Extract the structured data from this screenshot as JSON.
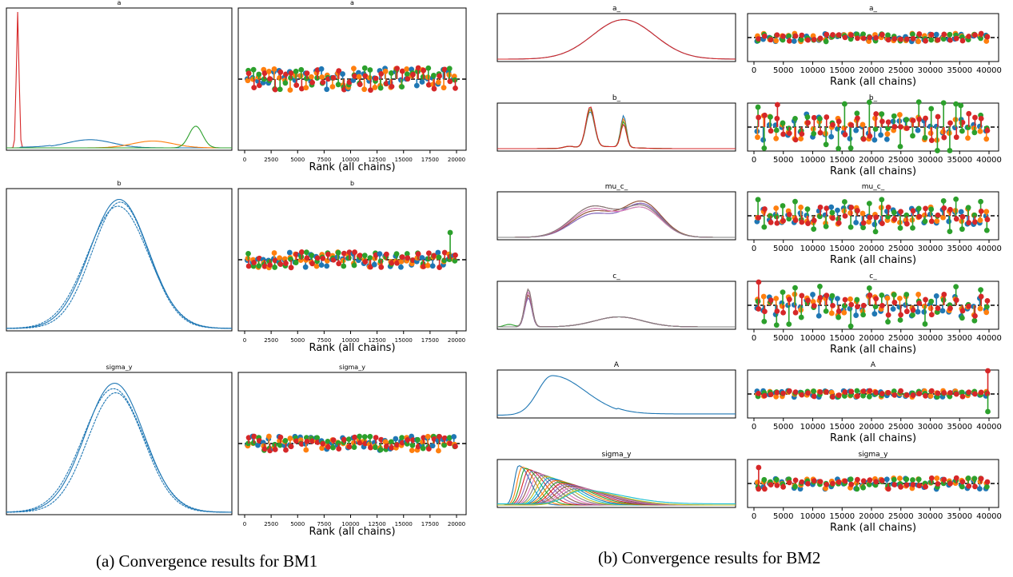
{
  "captions": {
    "a": "(a) Convergence results for BM1",
    "b": "(b) Convergence results for BM2"
  },
  "colors": {
    "chain_0": "#1f77b4",
    "chain_1": "#ff7f0e",
    "chain_2": "#2ca02c",
    "chain_3": "#d62728",
    "chain_4": "#9467bd",
    "chain_5": "#8c564b",
    "chain_6": "#e377c2",
    "chain_7": "#7f7f7f",
    "chain_8": "#bcbd22",
    "chain_9": "#17becf"
  },
  "chart_data": [
    {
      "figure": "BM1",
      "type": "line",
      "panel": "posterior",
      "title": "a",
      "series": [
        {
          "color": "#d62728",
          "center": 0.05,
          "width": 0.006,
          "height": 1.0
        },
        {
          "color": "#1f77b4",
          "center": 0.37,
          "width": 0.1,
          "height": 0.06
        },
        {
          "color": "#ff7f0e",
          "center": 0.65,
          "width": 0.09,
          "height": 0.05
        },
        {
          "color": "#2ca02c",
          "center": 0.84,
          "width": 0.03,
          "height": 0.16
        }
      ]
    },
    {
      "figure": "BM1",
      "type": "scatter",
      "panel": "rank",
      "title": "a",
      "xlabel": "Rank (all chains)",
      "xlim": [
        0,
        20000
      ],
      "xticks": [
        0,
        2500,
        5000,
        7500,
        10000,
        12500,
        15000,
        17500,
        20000
      ],
      "chains": 4
    },
    {
      "figure": "BM1",
      "type": "line",
      "panel": "posterior",
      "title": "b",
      "series": [
        {
          "color": "#1f77b4",
          "center": 0.5,
          "width": 0.13,
          "height": 0.95
        },
        {
          "color": "#1f77b4",
          "center": 0.495,
          "width": 0.135,
          "height": 0.9
        },
        {
          "color": "#1f77b4",
          "center": 0.505,
          "width": 0.125,
          "height": 0.93
        }
      ]
    },
    {
      "figure": "BM1",
      "type": "scatter",
      "panel": "rank",
      "title": "b",
      "xlabel": "Rank (all chains)",
      "xlim": [
        0,
        20000
      ],
      "xticks": [
        0,
        2500,
        5000,
        7500,
        10000,
        12500,
        15000,
        17500,
        20000
      ],
      "chains": 4
    },
    {
      "figure": "BM1",
      "type": "line",
      "panel": "posterior",
      "title": "sigma_y",
      "series": [
        {
          "color": "#1f77b4",
          "center": 0.48,
          "width": 0.13,
          "height": 0.95
        },
        {
          "color": "#1f77b4",
          "center": 0.485,
          "width": 0.125,
          "height": 0.88
        },
        {
          "color": "#1f77b4",
          "center": 0.475,
          "width": 0.135,
          "height": 0.91
        }
      ]
    },
    {
      "figure": "BM1",
      "type": "scatter",
      "panel": "rank",
      "title": "sigma_y",
      "xlabel": "Rank (all chains)",
      "xlim": [
        0,
        20000
      ],
      "xticks": [
        0,
        2500,
        5000,
        7500,
        10000,
        12500,
        15000,
        17500,
        20000
      ],
      "chains": 4
    },
    {
      "figure": "BM2",
      "type": "line",
      "panel": "posterior",
      "title": "a_",
      "series": [
        {
          "color": "#1f77b4",
          "center": 0.53,
          "width": 0.13,
          "height": 0.95
        },
        {
          "color": "#d62728",
          "center": 0.53,
          "width": 0.13,
          "height": 0.95
        }
      ]
    },
    {
      "figure": "BM2",
      "type": "scatter",
      "panel": "rank",
      "title": "a_",
      "xlabel": "Rank (all chains)",
      "xlim": [
        0,
        40000
      ],
      "xticks": [
        0,
        5000,
        10000,
        15000,
        20000,
        25000,
        30000,
        35000,
        40000
      ],
      "chains": 4
    },
    {
      "figure": "BM2",
      "type": "line",
      "panel": "posterior",
      "title": "b_",
      "modes": [
        0.39,
        0.53
      ],
      "chains": 4
    },
    {
      "figure": "BM2",
      "type": "scatter",
      "panel": "rank",
      "title": "b_",
      "xlabel": "Rank (all chains)",
      "xlim": [
        0,
        40000
      ],
      "xticks": [
        0,
        5000,
        10000,
        15000,
        20000,
        25000,
        30000,
        35000,
        40000
      ],
      "chains": 4
    },
    {
      "figure": "BM2",
      "type": "line",
      "panel": "posterior",
      "title": "mu_c_",
      "modes": [
        0.4,
        0.62
      ],
      "chains": 10
    },
    {
      "figure": "BM2",
      "type": "scatter",
      "panel": "rank",
      "title": "mu_c_",
      "xlabel": "Rank (all chains)",
      "xlim": [
        0,
        40000
      ],
      "xticks": [
        0,
        5000,
        10000,
        15000,
        20000,
        25000,
        30000,
        35000,
        40000
      ],
      "chains": 4
    },
    {
      "figure": "BM2",
      "type": "line",
      "panel": "posterior",
      "title": "c_",
      "modes": [
        0.13,
        0.52
      ],
      "chains": 10
    },
    {
      "figure": "BM2",
      "type": "scatter",
      "panel": "rank",
      "title": "c_",
      "xlabel": "Rank (all chains)",
      "xlim": [
        0,
        40000
      ],
      "xticks": [
        0,
        5000,
        10000,
        15000,
        20000,
        25000,
        30000,
        35000,
        40000
      ],
      "chains": 4
    },
    {
      "figure": "BM2",
      "type": "line",
      "panel": "posterior",
      "title": "A",
      "series": [
        {
          "color": "#1f77b4",
          "mode": 0.23
        }
      ]
    },
    {
      "figure": "BM2",
      "type": "scatter",
      "panel": "rank",
      "title": "A",
      "xlabel": "Rank (all chains)",
      "xlim": [
        0,
        40000
      ],
      "xticks": [
        0,
        5000,
        10000,
        15000,
        20000,
        25000,
        30000,
        35000,
        40000
      ],
      "chains": 4
    },
    {
      "figure": "BM2",
      "type": "line",
      "panel": "posterior",
      "title": "sigma_y",
      "chains": 20,
      "mode_range": [
        0.09,
        0.38
      ]
    },
    {
      "figure": "BM2",
      "type": "scatter",
      "panel": "rank",
      "title": "sigma_y",
      "xlabel": "Rank (all chains)",
      "xlim": [
        0,
        40000
      ],
      "xticks": [
        0,
        5000,
        10000,
        15000,
        20000,
        25000,
        30000,
        35000,
        40000
      ],
      "chains": 4
    }
  ]
}
